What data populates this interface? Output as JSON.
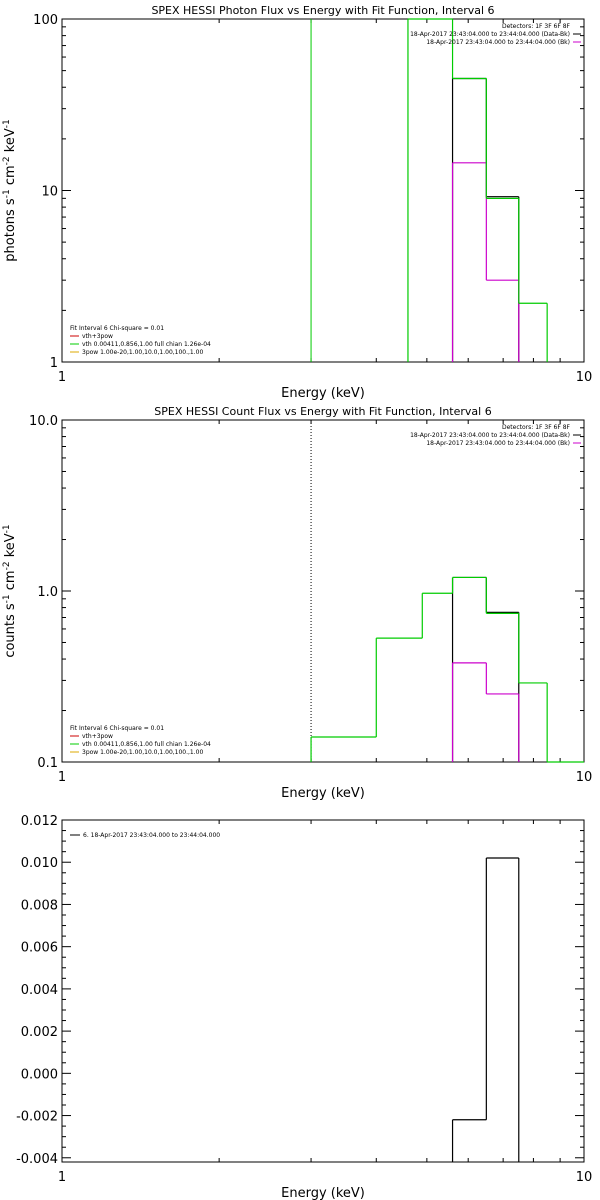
{
  "chart_data": [
    {
      "type": "line",
      "title": "SPEX HESSI Photon Flux vs Energy with Fit Function, Interval 6",
      "xlabel": "Energy (keV)",
      "ylabel": "photons s<sup>-1</sup> cm<sup>-2</sup> keV<sup>-1</sup>",
      "xscale": "log",
      "yscale": "log",
      "xlim": [
        1,
        10
      ],
      "ylim": [
        1,
        100
      ],
      "xticks": [
        {
          "v": 1,
          "l": "1"
        },
        {
          "v": 10,
          "l": "10"
        }
      ],
      "yticks": [
        {
          "v": 1,
          "l": "1"
        },
        {
          "v": 10,
          "l": "10"
        },
        {
          "v": 100,
          "l": "100"
        }
      ],
      "vline": {
        "x": 3.0,
        "style": "solid",
        "color": "#00cc00"
      },
      "legend_tr": [
        {
          "text": "Detectors: 1F 3F 6F 8F"
        },
        {
          "text": "18-Apr-2017 23:43:04.000 to 23:44:04.000 (Data-Bk)",
          "color": "#000000"
        },
        {
          "text": "18-Apr-2017 23:43:04.000 to 23:44:04.000 (Bk)",
          "color": "#cc00cc"
        }
      ],
      "legend_bl": [
        {
          "text": "Fit Interval  6    Chi-square = 0.01"
        },
        {
          "text": "vth+3pow",
          "color": "#cc0000"
        },
        {
          "text": "vth 0.00411,0.856,1.00   full chian 1.26e-04",
          "color": "#00cc00"
        },
        {
          "text": "3pow 1.00e-20,1.00,10.0,1.00,100.,1.00",
          "color": "#ddaa00"
        }
      ],
      "series": [
        {
          "color": "#000000",
          "steps": [
            {
              "x0": 5.6,
              "x1": 6.5,
              "y": 45
            },
            {
              "x0": 6.5,
              "x1": 7.5,
              "y": 9.2
            }
          ]
        },
        {
          "color": "#cc00cc",
          "steps": [
            {
              "x0": 5.6,
              "x1": 6.5,
              "y": 14.5
            },
            {
              "x0": 6.5,
              "x1": 7.5,
              "y": 3.0
            }
          ]
        },
        {
          "color": "#00cc00",
          "steps": [
            {
              "x0": 4.6,
              "x1": 5.6,
              "y": 100
            },
            {
              "x0": 5.6,
              "x1": 6.5,
              "y": 45
            },
            {
              "x0": 6.5,
              "x1": 7.5,
              "y": 9.0
            },
            {
              "x0": 7.5,
              "x1": 8.5,
              "y": 2.2
            }
          ]
        }
      ]
    },
    {
      "type": "line",
      "title": "SPEX HESSI Count Flux vs Energy with Fit Function, Interval 6",
      "xlabel": "Energy (keV)",
      "ylabel": "counts s<sup>-1</sup> cm<sup>-2</sup> keV<sup>-1</sup>",
      "xscale": "log",
      "yscale": "log",
      "xlim": [
        1,
        10
      ],
      "ylim": [
        0.1,
        10
      ],
      "xticks": [
        {
          "v": 1,
          "l": "1"
        },
        {
          "v": 10,
          "l": "10"
        }
      ],
      "yticks": [
        {
          "v": 0.1,
          "l": "0.1"
        },
        {
          "v": 1,
          "l": "1.0"
        },
        {
          "v": 10,
          "l": "10.0"
        }
      ],
      "vline": {
        "x": 3.0,
        "style": "dotted",
        "color": "#000000"
      },
      "legend_tr": [
        {
          "text": "Detectors: 1F 3F 6F 8F"
        },
        {
          "text": "18-Apr-2017 23:43:04.000 to 23:44:04.000 (Data-Bk)",
          "color": "#000000"
        },
        {
          "text": "18-Apr-2017 23:43:04.000 to 23:44:04.000 (Bk)",
          "color": "#cc00cc"
        }
      ],
      "legend_bl": [
        {
          "text": "Fit Interval  6    Chi-square = 0.01"
        },
        {
          "text": "vth+3pow",
          "color": "#cc0000"
        },
        {
          "text": "vth 0.00411,0.856,1.00   full chian 1.26e-04",
          "color": "#00cc00"
        },
        {
          "text": "3pow 1.00e-20,1.00,10.0,1.00,100.,1.00",
          "color": "#ddaa00"
        }
      ],
      "series": [
        {
          "color": "#000000",
          "steps": [
            {
              "x0": 5.6,
              "x1": 6.5,
              "y": 1.2
            },
            {
              "x0": 6.5,
              "x1": 7.5,
              "y": 0.75
            }
          ]
        },
        {
          "color": "#cc00cc",
          "steps": [
            {
              "x0": 5.6,
              "x1": 6.5,
              "y": 0.38
            },
            {
              "x0": 6.5,
              "x1": 7.5,
              "y": 0.25
            }
          ]
        },
        {
          "color": "#00cc00",
          "steps": [
            {
              "x0": 3.0,
              "x1": 4.0,
              "y": 0.14
            },
            {
              "x0": 4.0,
              "x1": 4.9,
              "y": 0.53
            },
            {
              "x0": 4.9,
              "x1": 5.6,
              "y": 0.97
            },
            {
              "x0": 5.6,
              "x1": 6.5,
              "y": 1.2
            },
            {
              "x0": 6.5,
              "x1": 7.5,
              "y": 0.74
            },
            {
              "x0": 7.5,
              "x1": 8.5,
              "y": 0.29
            },
            {
              "x0": 8.5,
              "x1": 10,
              "y": 0.1
            }
          ]
        }
      ]
    },
    {
      "type": "line",
      "title": "",
      "xlabel": "Energy (keV)",
      "ylabel": "",
      "xscale": "log",
      "yscale": "linear",
      "xlim": [
        1,
        10
      ],
      "ylim": [
        -0.0042,
        0.012
      ],
      "xticks": [
        {
          "v": 1,
          "l": "1"
        },
        {
          "v": 10,
          "l": "10"
        }
      ],
      "yticks": [
        {
          "v": -0.004,
          "l": "-0.004"
        },
        {
          "v": -0.002,
          "l": "-0.002"
        },
        {
          "v": 0.0,
          "l": "0.000"
        },
        {
          "v": 0.002,
          "l": "0.002"
        },
        {
          "v": 0.004,
          "l": "0.004"
        },
        {
          "v": 0.006,
          "l": "0.006"
        },
        {
          "v": 0.008,
          "l": "0.008"
        },
        {
          "v": 0.01,
          "l": "0.010"
        },
        {
          "v": 0.012,
          "l": "0.012"
        }
      ],
      "legend_tl": [
        {
          "text": "6. 18-Apr-2017 23:43:04.000 to 23:44:04.000",
          "color": "#000000"
        }
      ],
      "series": [
        {
          "color": "#000000",
          "steps": [
            {
              "x0": 5.6,
              "x1": 6.5,
              "y": -0.0022
            },
            {
              "x0": 6.5,
              "x1": 7.5,
              "y": 0.0102
            }
          ]
        }
      ]
    }
  ]
}
